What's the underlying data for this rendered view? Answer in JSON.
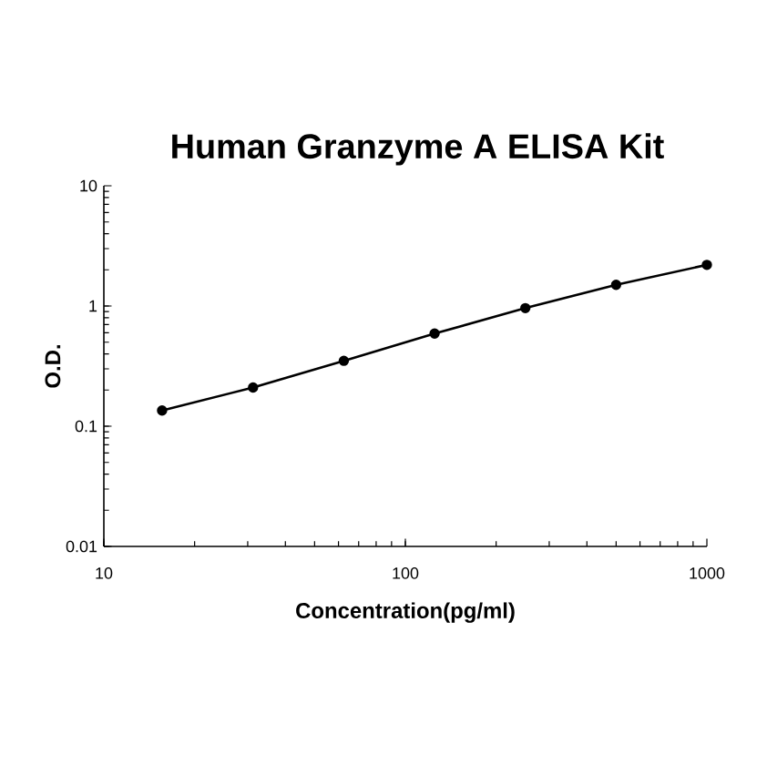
{
  "chart_data": {
    "type": "line",
    "title": "Human Granzyme A ELISA Kit",
    "xlabel": "Concentration(pg/ml)",
    "ylabel": "O.D.",
    "x": [
      15.6,
      31.25,
      62.5,
      125,
      250,
      500,
      1000
    ],
    "series": [
      {
        "color": "#000000",
        "values": [
          0.135,
          0.21,
          0.35,
          0.59,
          0.96,
          1.5,
          2.2
        ]
      }
    ],
    "log": "xy",
    "xlim": [
      10,
      1000
    ],
    "ylim": [
      0.01,
      10
    ],
    "xticks": [
      10,
      100,
      1000
    ],
    "yticks": [
      0.01,
      0.1,
      1,
      10
    ],
    "marker": "circle",
    "line_style": "solid",
    "grid": false
  }
}
